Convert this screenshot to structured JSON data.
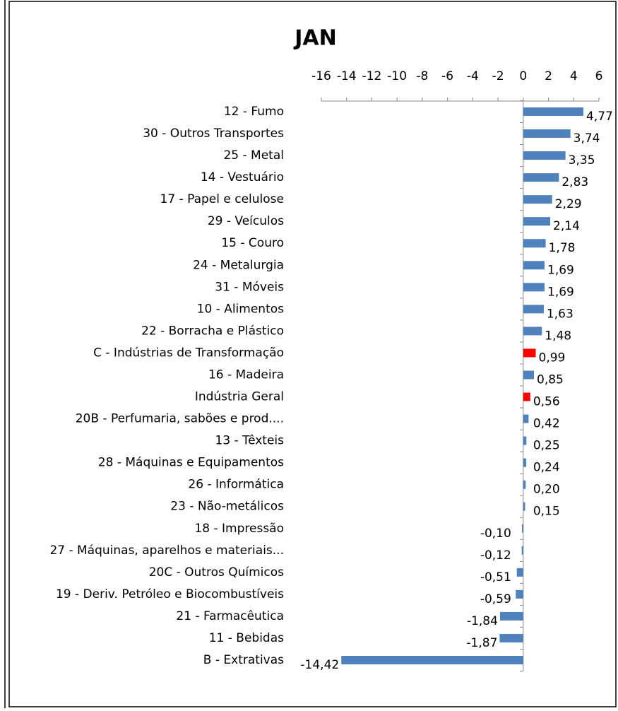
{
  "chart_data": {
    "type": "bar",
    "orientation": "horizontal",
    "title": "JAN",
    "categories": [
      "12 - Fumo",
      "30 - Outros Transportes",
      "25 - Metal",
      "14 - Vestuário",
      "17 - Papel e celulose",
      "29 - Veículos",
      "15 - Couro",
      "24 - Metalurgia",
      "31 - Móveis",
      "10 - Alimentos",
      "22 - Borracha e Plástico",
      "C - Indústrias de Transformação",
      "16 - Madeira",
      "Indústria Geral",
      "20B - Perfumaria, sabões e prod....",
      "13 - Têxteis",
      "28 - Máquinas e Equipamentos",
      "26 - Informática",
      "23 - Não-metálicos",
      "18 - Impressão",
      "27 - Máquinas, aparelhos e materiais...",
      "20C - Outros Químicos",
      "19 - Deriv. Petróleo e Biocombustíveis",
      "21 - Farmacêutica",
      "11 - Bebidas",
      "B - Extrativas"
    ],
    "values": [
      4.77,
      3.74,
      3.35,
      2.83,
      2.29,
      2.14,
      1.78,
      1.69,
      1.69,
      1.63,
      1.48,
      0.99,
      0.85,
      0.56,
      0.42,
      0.25,
      0.24,
      0.2,
      0.15,
      -0.1,
      -0.12,
      -0.51,
      -0.59,
      -1.84,
      -1.87,
      -14.42
    ],
    "value_labels": [
      "4,77",
      "3,74",
      "3,35",
      "2,83",
      "2,29",
      "2,14",
      "1,78",
      "1,69",
      "1,69",
      "1,63",
      "1,48",
      "0,99",
      "0,85",
      "0,56",
      "0,42",
      "0,25",
      "0,24",
      "0,20",
      "0,15",
      "-0,10",
      "-0,12",
      "-0,51",
      "-0,59",
      "-1,84",
      "-1,87",
      "-14,42"
    ],
    "colors": [
      "#4f81bd",
      "#4f81bd",
      "#4f81bd",
      "#4f81bd",
      "#4f81bd",
      "#4f81bd",
      "#4f81bd",
      "#4f81bd",
      "#4f81bd",
      "#4f81bd",
      "#4f81bd",
      "#ff0000",
      "#4f81bd",
      "#ff0000",
      "#4f81bd",
      "#4f81bd",
      "#4f81bd",
      "#4f81bd",
      "#4f81bd",
      "#4f81bd",
      "#4f81bd",
      "#4f81bd",
      "#4f81bd",
      "#4f81bd",
      "#4f81bd",
      "#4f81bd"
    ],
    "xlim": [
      -16,
      6
    ],
    "xticks": [
      -16,
      -14,
      -12,
      -10,
      -8,
      -6,
      -4,
      -2,
      0,
      2,
      4,
      6
    ],
    "grid": false
  }
}
